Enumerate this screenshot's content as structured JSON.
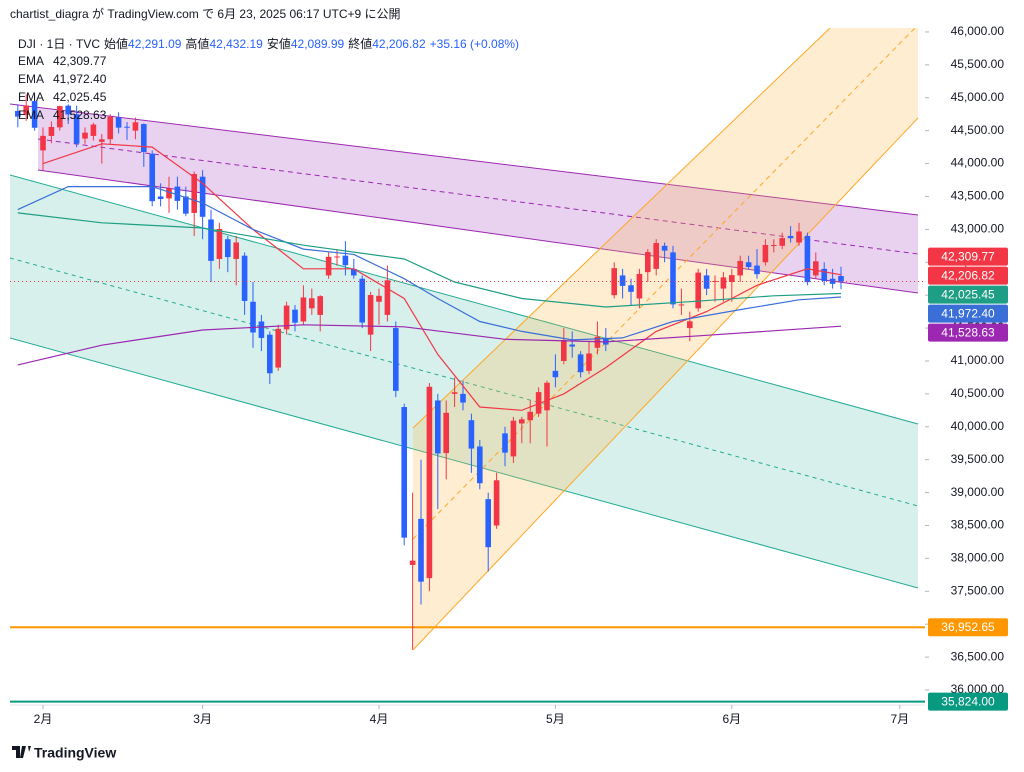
{
  "header": {
    "published": "chartist_diagra が TradingView.com で 6月 23, 2025 06:17 UTC+9 に公開",
    "symbol": "DJI · 1日 · TVC",
    "ohlc": [
      {
        "name": "始値",
        "label": "42,291.09"
      },
      {
        "name": "高値",
        "label": "42,432.19"
      },
      {
        "name": "安値",
        "label": "42,089.99"
      },
      {
        "name": "終値",
        "label": "42,206.82"
      }
    ],
    "change": "+35.16 (+0.08%)"
  },
  "footer": {
    "logo": "TradingView"
  },
  "chart_data": {
    "type": "candlestick",
    "up_color": "#f23645",
    "down_color": "#2962ff",
    "grid": false,
    "open": [
      44800,
      44740,
      44950,
      44200,
      44420,
      44550,
      44880,
      44750,
      44380,
      44420,
      44330,
      44370,
      44700,
      44560,
      44500,
      44600,
      44150,
      43500,
      43470,
      43650,
      43500,
      43250,
      43800,
      43150,
      42550,
      42850,
      42550,
      42600,
      41900,
      41600,
      41400,
      40900,
      41480,
      41780,
      41600,
      41800,
      41700,
      42300,
      42580,
      42600,
      42400,
      42250,
      41400,
      41900,
      41700,
      41500,
      40300,
      37900,
      38600,
      37700,
      40400,
      39600,
      40500,
      40500,
      40100,
      39700,
      38900,
      38500,
      39900,
      39550,
      40050,
      40100,
      40200,
      40250,
      40850,
      41000,
      41250,
      41100,
      40850,
      41200,
      41350,
      42000,
      42300,
      42150,
      41950,
      42350,
      42400,
      42750,
      42650,
      41850,
      41500,
      41800,
      42300,
      42200,
      42100,
      42200,
      42300,
      42500,
      42450,
      42500,
      42750,
      42750,
      42900,
      42800,
      42900,
      42300,
      42400,
      42250,
      42291.09
    ],
    "high": [
      44900,
      45050,
      45050,
      44550,
      44640,
      44880,
      44900,
      44880,
      44550,
      44620,
      44450,
      44750,
      44780,
      44630,
      44700,
      44610,
      44200,
      43700,
      43800,
      43800,
      43650,
      43880,
      43900,
      43300,
      43100,
      42900,
      42900,
      42650,
      42200,
      41700,
      41450,
      41550,
      41900,
      41850,
      42150,
      42100,
      42000,
      42650,
      42700,
      42820,
      42550,
      42300,
      42050,
      42100,
      42450,
      41600,
      40350,
      39000,
      39500,
      40663,
      40500,
      40400,
      40750,
      40700,
      40200,
      39800,
      39000,
      39300,
      40000,
      40150,
      40150,
      40400,
      40600,
      40700,
      41100,
      41500,
      41450,
      41150,
      41300,
      41600,
      41500,
      42500,
      42400,
      42250,
      42400,
      42700,
      42850,
      42800,
      42750,
      42100,
      41750,
      42400,
      42400,
      42300,
      42350,
      42400,
      42600,
      42600,
      42700,
      42850,
      42850,
      42950,
      43050,
      43100,
      42950,
      42650,
      42500,
      42400,
      42432.19
    ],
    "low": [
      44550,
      44650,
      44500,
      43900,
      44310,
      44500,
      44600,
      44250,
      44300,
      44350,
      44000,
      44300,
      44460,
      44360,
      44370,
      43950,
      43350,
      43350,
      43250,
      43300,
      43200,
      42900,
      42850,
      42200,
      42400,
      42350,
      42150,
      41700,
      41200,
      41150,
      40650,
      40850,
      41400,
      41450,
      41550,
      41700,
      41450,
      42250,
      42450,
      42300,
      42250,
      41500,
      41150,
      41550,
      41600,
      40450,
      38200,
      36612,
      37300,
      37500,
      38750,
      39200,
      40300,
      40250,
      39300,
      39050,
      37800,
      38450,
      39400,
      39450,
      39750,
      39750,
      40150,
      39700,
      40600,
      40950,
      41050,
      40750,
      40800,
      41100,
      41150,
      41950,
      41950,
      41850,
      41800,
      42200,
      42300,
      42500,
      41800,
      41700,
      41300,
      41750,
      42000,
      41900,
      41900,
      41900,
      42200,
      42400,
      42250,
      42450,
      42650,
      42700,
      42800,
      42750,
      42150,
      42250,
      42150,
      42100,
      42089.99
    ],
    "close": [
      44713,
      44882,
      44544,
      44421,
      44556,
      44873,
      44747,
      44303,
      44470,
      44593,
      44368,
      44711,
      44546,
      44556,
      44627,
      44176,
      43428,
      43461,
      43621,
      43433,
      43239,
      43841,
      43191,
      42521,
      43006,
      42579,
      42801,
      41912,
      41433,
      41350,
      40813,
      41488,
      41842,
      41582,
      41965,
      41953,
      41985,
      42583,
      42588,
      42455,
      42300,
      41584,
      42002,
      41990,
      42226,
      40546,
      38315,
      37966,
      37646,
      40608,
      39594,
      40213,
      40525,
      40368,
      39669,
      39142,
      38170,
      39187,
      39607,
      40093,
      40114,
      40228,
      40527,
      40669,
      40753,
      41317,
      41219,
      40829,
      41114,
      41368,
      41249,
      42410,
      42141,
      42051,
      42323,
      42655,
      42792,
      42677,
      41860,
      41859,
      41603,
      42343,
      42098,
      42216,
      42270,
      42305,
      42520,
      42428,
      42319,
      42763,
      42762,
      42867,
      42865,
      42968,
      42198,
      42515,
      42215,
      42172,
      42206.82
    ],
    "close_tag": {
      "label": "42,206.82"
    },
    "series": [
      {
        "name": "EMA",
        "color": "#f23645",
        "last_label": "42,309.77",
        "x": [
          3,
          10,
          16,
          22,
          28,
          34,
          40,
          46,
          50,
          55,
          60,
          65,
          70,
          76,
          82,
          88,
          94,
          98
        ],
        "values": [
          44000,
          44300,
          44250,
          43700,
          43000,
          42400,
          42400,
          41950,
          41100,
          40300,
          40250,
          40500,
          40900,
          41450,
          41750,
          42150,
          42400,
          42309.77
        ]
      },
      {
        "name": "EMA",
        "color": "#3a6fd8",
        "last_label": "41,972.40",
        "x": [
          0,
          6,
          16,
          22,
          28,
          34,
          40,
          46,
          50,
          55,
          60,
          66,
          72,
          78,
          86,
          93,
          98
        ],
        "values": [
          43300,
          43650,
          43650,
          43400,
          43000,
          42700,
          42620,
          42250,
          41950,
          41600,
          41450,
          41320,
          41350,
          41600,
          41780,
          41930,
          41972.4
        ]
      },
      {
        "name": "EMA",
        "color": "#1e9e84",
        "last_label": "42,025.45",
        "x": [
          0,
          10,
          22,
          34,
          46,
          52,
          60,
          70,
          80,
          90,
          98
        ],
        "values": [
          43250,
          43100,
          43020,
          42760,
          42550,
          42200,
          41950,
          41820,
          41900,
          41990,
          42025.45
        ]
      },
      {
        "name": "EMA",
        "color": "#9c27b0",
        "last_label": "41,528.63",
        "x": [
          0,
          10,
          22,
          34,
          46,
          58,
          70,
          82,
          98
        ],
        "values": [
          40940,
          41240,
          41470,
          41550,
          41520,
          41330,
          41290,
          41390,
          41528.63
        ]
      }
    ],
    "levels": [
      {
        "value": 36952.65,
        "label": "36,952.65",
        "color": "#ff9800"
      },
      {
        "value": 35824,
        "label": "35,824.00",
        "color": "#089981"
      }
    ],
    "ylim": [
      35772,
      46060
    ],
    "yticks": [
      {
        "value": 36000,
        "label": "36,000.00"
      },
      {
        "value": 36500,
        "label": "36,500.00"
      },
      {
        "value": 37000,
        "label": "37,000.00"
      },
      {
        "value": 37500,
        "label": "37,500.00"
      },
      {
        "value": 38000,
        "label": "38,000.00"
      },
      {
        "value": 38500,
        "label": "38,500.00"
      },
      {
        "value": 39000,
        "label": "39,000.00"
      },
      {
        "value": 39500,
        "label": "39,500.00"
      },
      {
        "value": 40000,
        "label": "40,000.00"
      },
      {
        "value": 40500,
        "label": "40,500.00"
      },
      {
        "value": 41000,
        "label": "41,000.00"
      },
      {
        "value": 41500,
        "label": "41,500.00"
      },
      {
        "value": 42000,
        "label": "42,000.00"
      },
      {
        "value": 42500,
        "label": "42,500.00"
      },
      {
        "value": 43000,
        "label": "43,000.00"
      },
      {
        "value": 43500,
        "label": "43,500.00"
      },
      {
        "value": 44000,
        "label": "44,000.00"
      },
      {
        "value": 44500,
        "label": "44,500.00"
      },
      {
        "value": 45000,
        "label": "45,000.00"
      },
      {
        "value": 45500,
        "label": "45,500.00"
      },
      {
        "value": 46000,
        "label": "46,000.00"
      }
    ],
    "xlim": [
      -0.93,
      108
    ],
    "xticks": [
      {
        "value": 3,
        "label": "2月"
      },
      {
        "value": 22,
        "label": "3月"
      },
      {
        "value": 43,
        "label": "4月"
      },
      {
        "value": 64,
        "label": "5月"
      },
      {
        "value": 85,
        "label": "6月"
      },
      {
        "value": 105,
        "label": "7月"
      }
    ]
  }
}
